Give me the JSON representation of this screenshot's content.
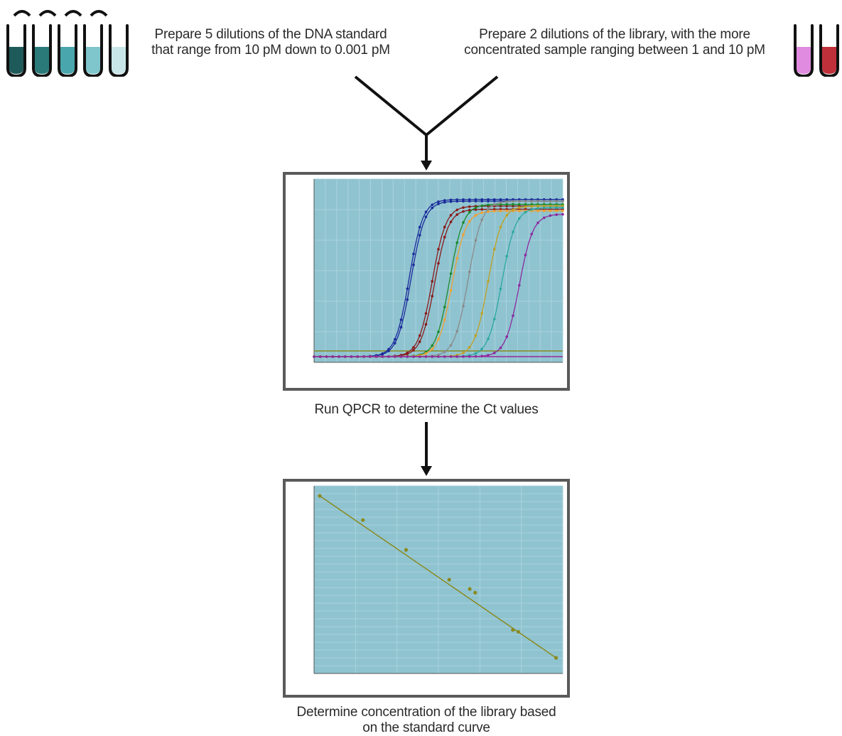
{
  "labels": {
    "standard_line1": "Prepare 5 dilutions of the DNA standard",
    "standard_line2": "that range from 10 pM down to 0.001 pM",
    "library_line1": "Prepare 2 dilutions of the library, with the more",
    "library_line2": "concentrated sample ranging between 1 and 10 pM",
    "qpcr": "Run QPCR to determine the Ct values",
    "final_line1": "Determine concentration of the library based",
    "final_line2": "on the standard curve"
  },
  "tubes": {
    "standard_colors": [
      "#1f5a5a",
      "#2a7a7a",
      "#4aa6ad",
      "#7fc6cc",
      "#c8e6e8"
    ],
    "library_colors": [
      "#e08ae0",
      "#c0303a"
    ]
  },
  "colors": {
    "plot_bg": "#8fc3d0",
    "panel_border": "#5a5a5a",
    "arrow": "#111111"
  },
  "amplification": {
    "curve_colors": [
      "#1a2a9a",
      "#1a2a9a",
      "#8a1a1a",
      "#8a1a1a",
      "#1a8a2a",
      "#f0a030",
      "#8a8a8a",
      "#c0a020",
      "#2aa8a0",
      "#8a2aa0"
    ],
    "midpoints": [
      15.3,
      15.6,
      19.0,
      19.4,
      21.8,
      22.2,
      24.8,
      28.0,
      30.2,
      33.0
    ],
    "plateaus": [
      0.97,
      0.96,
      0.93,
      0.91,
      0.94,
      0.9,
      0.96,
      0.93,
      0.92,
      0.88
    ]
  },
  "standard_curve": {
    "points": [
      [
        0.0001,
        1.0
      ],
      [
        0.001,
        0.87
      ],
      [
        0.01,
        0.71
      ],
      [
        0.1,
        0.55
      ],
      [
        0.3,
        0.5
      ],
      [
        0.4,
        0.48
      ],
      [
        3,
        0.28
      ],
      [
        4,
        0.27
      ],
      [
        30,
        0.13
      ]
    ]
  }
}
